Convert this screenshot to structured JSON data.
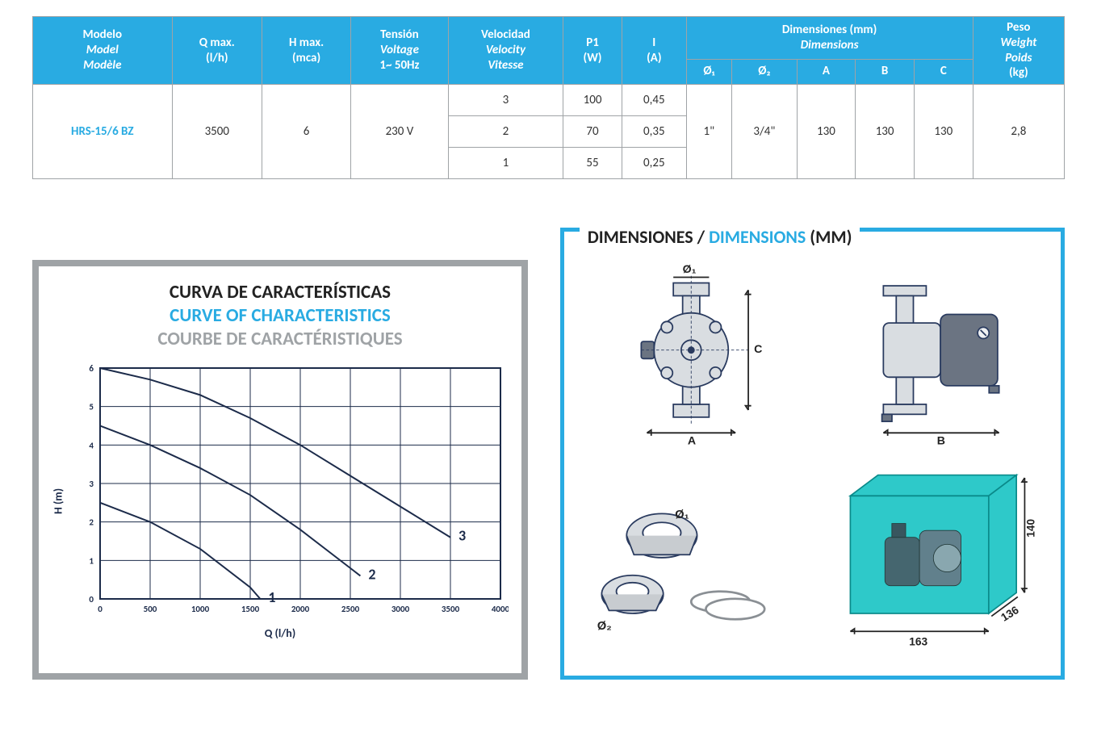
{
  "table": {
    "headers": {
      "model": {
        "es": "Modelo",
        "en": "Model",
        "fr": "Modèle"
      },
      "qmax": {
        "line1": "Q max.",
        "line2": "(l/h)"
      },
      "hmax": {
        "line1": "H max.",
        "line2": "(mca)"
      },
      "voltage": {
        "es": "Tensión",
        "en": "Voltage",
        "hz": "1~ 50Hz"
      },
      "speed": {
        "es": "Velocidad",
        "en": "Velocity",
        "fr": "Vitesse"
      },
      "p1": {
        "line1": "P1",
        "line2": "(W)"
      },
      "i": {
        "line1": "I",
        "line2": "(A)"
      },
      "dims": {
        "es": "Dimensiones (mm)",
        "en": "Dimensions",
        "cols": [
          "Ø₁",
          "Ø₂",
          "A",
          "B",
          "C"
        ]
      },
      "weight": {
        "es": "Peso",
        "en": "Weight",
        "fr": "Poids",
        "unit": "(kg)"
      }
    },
    "row": {
      "model": "HRS-15/6 BZ",
      "qmax": "3500",
      "hmax": "6",
      "voltage": "230 V",
      "speeds": [
        {
          "v": "3",
          "p1": "100",
          "i": "0,45"
        },
        {
          "v": "2",
          "p1": "70",
          "i": "0,35"
        },
        {
          "v": "1",
          "p1": "55",
          "i": "0,25"
        }
      ],
      "d1": "1\"",
      "d2": "3/4\"",
      "A": "130",
      "B": "130",
      "C": "130",
      "weight": "2,8"
    }
  },
  "chart": {
    "title_es": "CURVA DE CARACTERÍSTICAS",
    "title_en": "CURVE OF CHARACTERISTICS",
    "title_fr": "COURBE DE CARACTÉRISTIQUES",
    "xlabel": "Q (l/h)",
    "ylabel": "H (m)",
    "xlim": [
      0,
      4000
    ],
    "ylim": [
      0,
      6
    ],
    "xtick_step": 500,
    "ytick_step": 1,
    "grid_color": "#1c2b4a",
    "line_color": "#1c2b4a",
    "line_width": 2,
    "curves": [
      {
        "label": "1",
        "points": [
          [
            0,
            2.5
          ],
          [
            500,
            2.0
          ],
          [
            1000,
            1.3
          ],
          [
            1500,
            0.3
          ],
          [
            1600,
            0
          ]
        ]
      },
      {
        "label": "2",
        "points": [
          [
            0,
            4.5
          ],
          [
            500,
            4.0
          ],
          [
            1000,
            3.4
          ],
          [
            1500,
            2.7
          ],
          [
            2000,
            1.8
          ],
          [
            2500,
            0.8
          ],
          [
            2600,
            0.6
          ]
        ]
      },
      {
        "label": "3",
        "points": [
          [
            0,
            6.0
          ],
          [
            500,
            5.7
          ],
          [
            1000,
            5.3
          ],
          [
            1500,
            4.7
          ],
          [
            2000,
            4.0
          ],
          [
            2500,
            3.2
          ],
          [
            3000,
            2.4
          ],
          [
            3500,
            1.6
          ]
        ]
      }
    ],
    "label_fontsize": 18,
    "tick_fontsize": 11
  },
  "dimensions_panel": {
    "title_es": "DIMENSIONES",
    "slash": "/",
    "title_en": "DIMENSIONS",
    "unit": "(MM)",
    "drawings": {
      "front": {
        "labels": {
          "top": "Ø₁",
          "bottom": "A",
          "right": "C"
        }
      },
      "side": {
        "labels": {
          "bottom": "B"
        }
      },
      "fittings": {
        "labels": {
          "d1": "Ø₁",
          "d2": "Ø₂"
        }
      },
      "package": {
        "width": "163",
        "depth": "136",
        "height": "140",
        "box_color": "#2ec9c9",
        "box_stroke": "#0a8a8a"
      }
    }
  },
  "colors": {
    "brand_blue": "#29abe2",
    "grid_grey": "#9fa3a6",
    "navy": "#1c2b4a"
  }
}
